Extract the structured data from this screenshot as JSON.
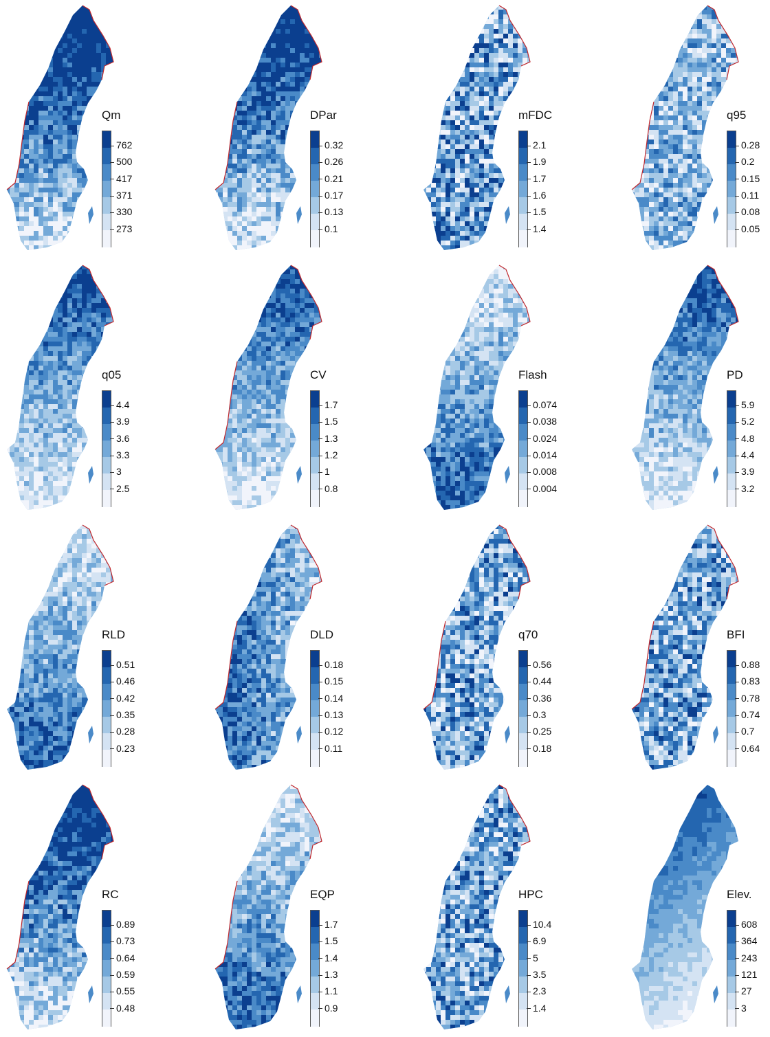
{
  "figure": {
    "palette": [
      "#f1f4fb",
      "#d4e3f3",
      "#a6c9e6",
      "#74a9d8",
      "#4a8ac8",
      "#2466b0",
      "#0b3f8f"
    ],
    "border_color": "#c0282d",
    "panels": [
      {
        "title": "Qm",
        "ticks": [
          "762",
          "500",
          "417",
          "371",
          "330",
          "273"
        ],
        "shade": 0.75,
        "pattern": "north",
        "border": "full"
      },
      {
        "title": "DPar",
        "ticks": [
          "0.32",
          "0.26",
          "0.21",
          "0.17",
          "0.13",
          "0.1"
        ],
        "shade": 0.7,
        "pattern": "north",
        "border": "full"
      },
      {
        "title": "mFDC",
        "ticks": [
          "2.1",
          "1.9",
          "1.7",
          "1.6",
          "1.5",
          "1.4"
        ],
        "shade": 0.65,
        "pattern": "mixed",
        "border": "east"
      },
      {
        "title": "q95",
        "ticks": [
          "0.28",
          "0.2",
          "0.15",
          "0.11",
          "0.08",
          "0.05"
        ],
        "shade": 0.5,
        "pattern": "mixed",
        "border": "full"
      },
      {
        "title": "q05",
        "ticks": [
          "4.4",
          "3.9",
          "3.6",
          "3.3",
          "3",
          "2.5"
        ],
        "shade": 0.55,
        "pattern": "north",
        "border": "east"
      },
      {
        "title": "CV",
        "ticks": [
          "1.7",
          "1.5",
          "1.3",
          "1.2",
          "1",
          "0.8"
        ],
        "shade": 0.55,
        "pattern": "north",
        "border": "full"
      },
      {
        "title": "Flash",
        "ticks": [
          "0.074",
          "0.038",
          "0.024",
          "0.014",
          "0.008",
          "0.004"
        ],
        "shade": 0.5,
        "pattern": "south",
        "border": "east"
      },
      {
        "title": "PD",
        "ticks": [
          "5.9",
          "5.2",
          "4.8",
          "4.4",
          "3.9",
          "3.2"
        ],
        "shade": 0.55,
        "pattern": "north",
        "border": "east"
      },
      {
        "title": "RLD",
        "ticks": [
          "0.51",
          "0.46",
          "0.42",
          "0.35",
          "0.28",
          "0.23"
        ],
        "shade": 0.5,
        "pattern": "south",
        "border": "east"
      },
      {
        "title": "DLD",
        "ticks": [
          "0.18",
          "0.15",
          "0.14",
          "0.13",
          "0.12",
          "0.11"
        ],
        "shade": 0.6,
        "pattern": "west",
        "border": "full"
      },
      {
        "title": "q70",
        "ticks": [
          "0.56",
          "0.44",
          "0.36",
          "0.3",
          "0.25",
          "0.18"
        ],
        "shade": 0.6,
        "pattern": "mixed",
        "border": "full"
      },
      {
        "title": "BFI",
        "ticks": [
          "0.88",
          "0.83",
          "0.78",
          "0.74",
          "0.7",
          "0.64"
        ],
        "shade": 0.6,
        "pattern": "mixed",
        "border": "full"
      },
      {
        "title": "RC",
        "ticks": [
          "0.89",
          "0.73",
          "0.64",
          "0.59",
          "0.55",
          "0.48"
        ],
        "shade": 0.7,
        "pattern": "north",
        "border": "full"
      },
      {
        "title": "EQP",
        "ticks": [
          "1.7",
          "1.5",
          "1.4",
          "1.3",
          "1.1",
          "0.9"
        ],
        "shade": 0.5,
        "pattern": "south",
        "border": "full"
      },
      {
        "title": "HPC",
        "ticks": [
          "10.4",
          "6.9",
          "5",
          "3.5",
          "2.3",
          "1.4"
        ],
        "shade": 0.6,
        "pattern": "mixed",
        "border": "east"
      },
      {
        "title": "Elev.",
        "ticks": [
          "608",
          "364",
          "243",
          "121",
          "27",
          "3"
        ],
        "shade": 0.6,
        "pattern": "elev",
        "border": "none"
      }
    ]
  }
}
